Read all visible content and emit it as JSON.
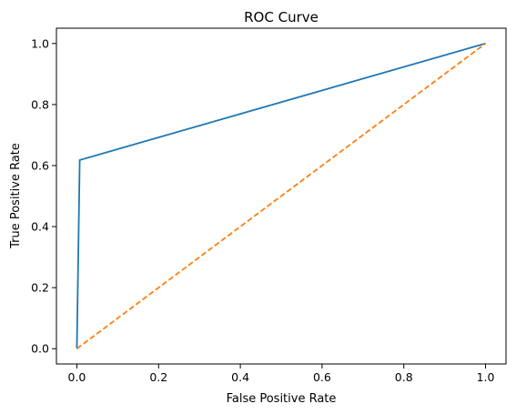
{
  "chart_data": {
    "type": "line",
    "title": "ROC Curve",
    "xlabel": "False Positive Rate",
    "ylabel": "True Positive Rate",
    "xlim": [
      -0.05,
      1.05
    ],
    "ylim": [
      -0.05,
      1.05
    ],
    "xticks": [
      0.0,
      0.2,
      0.4,
      0.6,
      0.8,
      1.0
    ],
    "yticks": [
      0.0,
      0.2,
      0.4,
      0.6,
      0.8,
      1.0
    ],
    "xtick_labels": [
      "0.0",
      "0.2",
      "0.4",
      "0.6",
      "0.8",
      "1.0"
    ],
    "ytick_labels": [
      "0.0",
      "0.2",
      "0.4",
      "0.6",
      "0.8",
      "1.0"
    ],
    "grid": false,
    "series": [
      {
        "x": [
          0.0,
          0.007,
          1.0
        ],
        "y": [
          0.0,
          0.618,
          1.0
        ],
        "color": "#1f77b4",
        "style": "solid"
      },
      {
        "x": [
          0.0,
          1.0
        ],
        "y": [
          0.0,
          1.0
        ],
        "color": "#ff7f0e",
        "style": "dashed"
      }
    ]
  }
}
